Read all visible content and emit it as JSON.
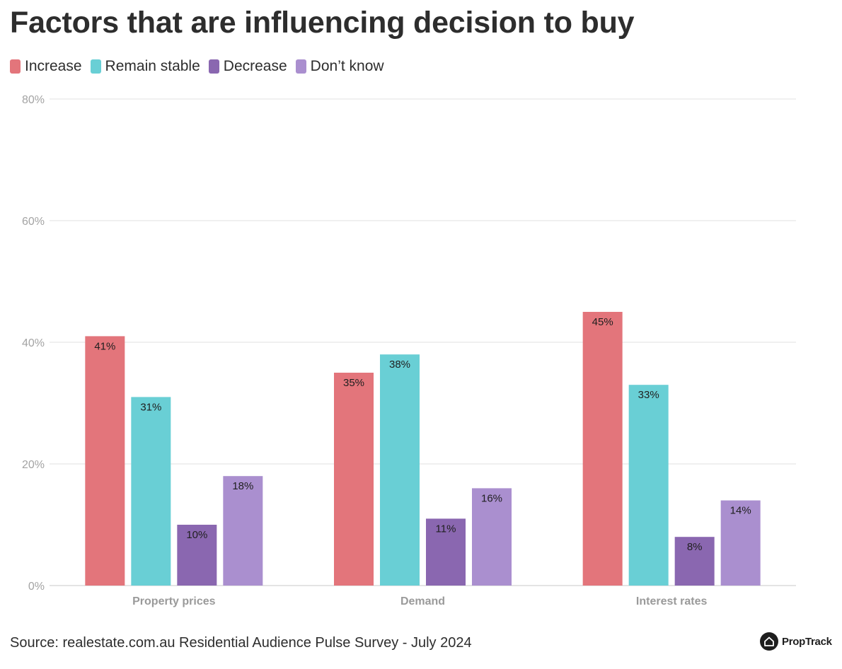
{
  "chart_data": {
    "type": "bar",
    "title": "Factors that are influencing decision to buy",
    "categories": [
      "Property prices",
      "Demand",
      "Interest rates"
    ],
    "series": [
      {
        "name": "Increase",
        "color": "#e3757b",
        "values": [
          41,
          35,
          45
        ],
        "labels": [
          "41%",
          "35%",
          "45%"
        ]
      },
      {
        "name": "Remain stable",
        "color": "#69cfd5",
        "values": [
          31,
          38,
          33
        ],
        "labels": [
          "31%",
          "38%",
          "33%"
        ]
      },
      {
        "name": "Decrease",
        "color": "#8a67b0",
        "values": [
          10,
          11,
          8
        ],
        "labels": [
          "10%",
          "11%",
          "8%"
        ]
      },
      {
        "name": "Don’t know",
        "color": "#aa8fcf",
        "values": [
          18,
          16,
          14
        ],
        "labels": [
          "18%",
          "16%",
          "14%"
        ]
      }
    ],
    "ylim": [
      0,
      80
    ],
    "yticks": [
      0,
      20,
      40,
      60,
      80
    ],
    "ytick_labels": [
      "0%",
      "20%",
      "40%",
      "60%",
      "80%"
    ],
    "xlabel": "",
    "ylabel": "",
    "grid": true,
    "legend_position": "top-left"
  },
  "footer": {
    "source": "Source: realestate.com.au Residential Audience Pulse Survey - July 2024",
    "brand": "PropTrack"
  },
  "icons": {
    "brand": "house-icon"
  }
}
